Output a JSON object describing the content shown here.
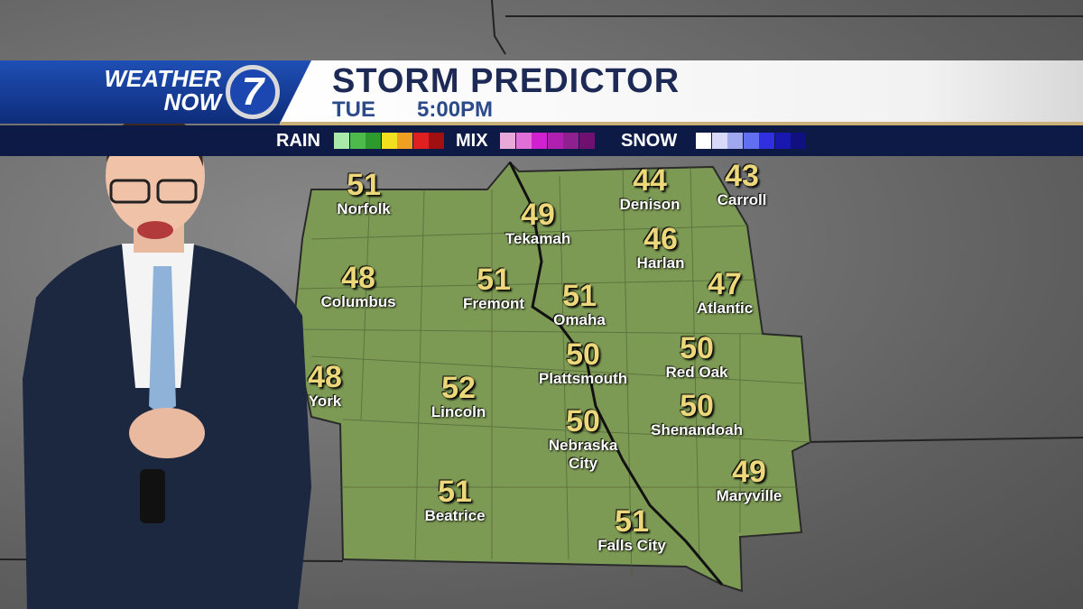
{
  "header": {
    "logo_line1": "WEATHER",
    "logo_line2": "NOW",
    "logo_number": "7",
    "title": "STORM PREDICTOR",
    "day": "TUE",
    "time": "5:00PM"
  },
  "legend": {
    "rain_label": "RAIN",
    "rain_colors": [
      "#a8e8a8",
      "#4cbb4c",
      "#2e9a2e",
      "#f0e020",
      "#f0a020",
      "#e02020",
      "#a01010"
    ],
    "mix_label": "MIX",
    "mix_colors": [
      "#e8a8d8",
      "#e070d8",
      "#d020d0",
      "#b020b0",
      "#902090",
      "#701070"
    ],
    "snow_label": "SNOW",
    "snow_colors": [
      "#ffffff",
      "#d8d8f8",
      "#a0a8f0",
      "#6070f0",
      "#3030e0",
      "#1818b0",
      "#101080"
    ]
  },
  "map": {
    "land_color": "#7d9a55",
    "cities": [
      {
        "name": "Norfolk",
        "temp": "51"
      },
      {
        "name": "Tekamah",
        "temp": "49"
      },
      {
        "name": "Denison",
        "temp": "44"
      },
      {
        "name": "Carroll",
        "temp": "43"
      },
      {
        "name": "Harlan",
        "temp": "46"
      },
      {
        "name": "Columbus",
        "temp": "48"
      },
      {
        "name": "Fremont",
        "temp": "51"
      },
      {
        "name": "Omaha",
        "temp": "51"
      },
      {
        "name": "Atlantic",
        "temp": "47"
      },
      {
        "name": "Plattsmouth",
        "temp": "50"
      },
      {
        "name": "Red Oak",
        "temp": "50"
      },
      {
        "name": "York",
        "temp": "48"
      },
      {
        "name": "Lincoln",
        "temp": "52"
      },
      {
        "name": "Shenandoah",
        "temp": "50"
      },
      {
        "name": "Nebraska City",
        "temp": "50"
      },
      {
        "name": "Maryville",
        "temp": "49"
      },
      {
        "name": "Beatrice",
        "temp": "51"
      },
      {
        "name": "Falls City",
        "temp": "51"
      }
    ]
  }
}
